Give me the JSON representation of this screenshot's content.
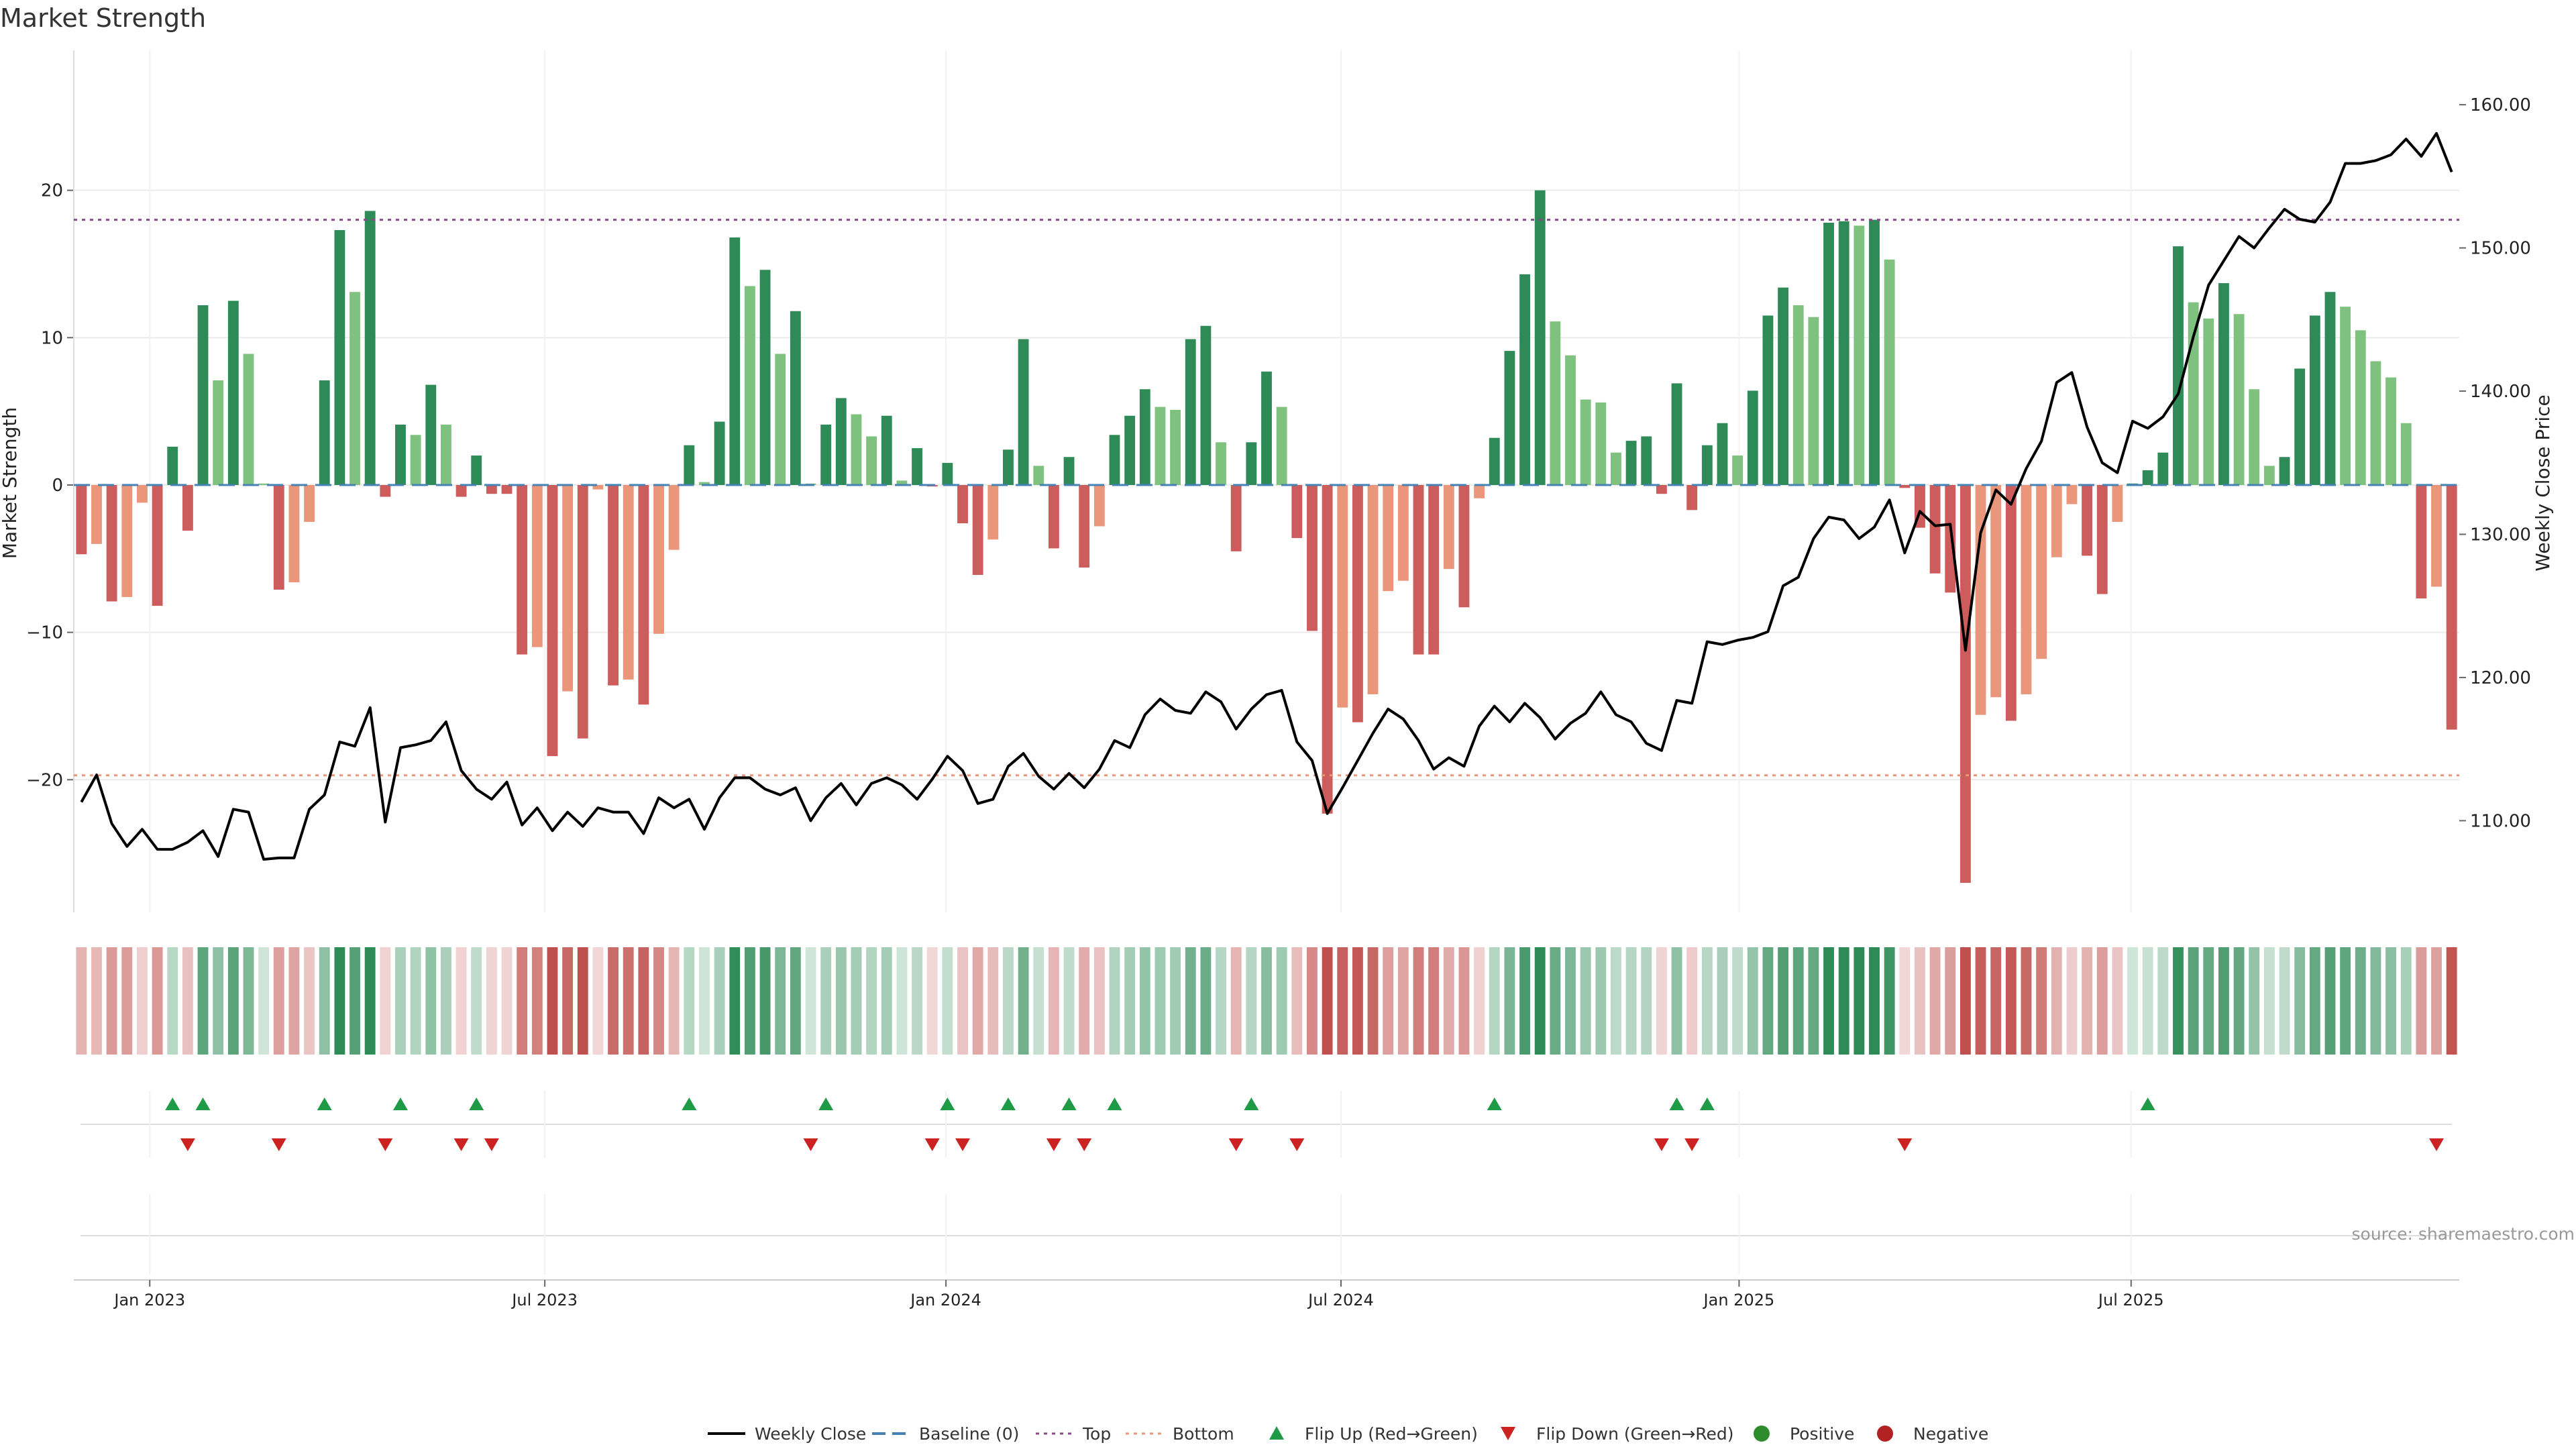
{
  "chart_data": {
    "type": "bar",
    "title": "Market Strength",
    "ylabel": "Market Strength",
    "y2label": "Weekly Close Price",
    "ylim": [
      -29,
      29.5
    ],
    "y2lim": [
      103.6,
      163.8
    ],
    "yticks": [
      -20,
      -10,
      0,
      10,
      20
    ],
    "y2ticks": [
      "110.00",
      "120.00",
      "130.00",
      "140.00",
      "150.00",
      "160.00"
    ],
    "top_line": 18,
    "bottom_line": -19.7,
    "x_start": "2022-11-28",
    "week_step": 1,
    "x_ticks": [
      {
        "label": "Jan 2023",
        "week": 5
      },
      {
        "label": "Jul 2023",
        "week": 31
      },
      {
        "label": "Jan 2024",
        "week": 57.4
      },
      {
        "label": "Jul 2024",
        "week": 83.4
      },
      {
        "label": "Jan 2025",
        "week": 109.6
      },
      {
        "label": "Jul 2025",
        "week": 135.4
      }
    ],
    "strength": [
      -4.7,
      -4,
      -7.9,
      -7.6,
      -1.2,
      -8.2,
      2.6,
      -3.1,
      12.2,
      7.1,
      12.5,
      8.9,
      0.1,
      -7.1,
      -6.6,
      -2.5,
      7.1,
      17.3,
      13.1,
      18.6,
      -0.8,
      4.1,
      3.4,
      6.8,
      4.1,
      -0.8,
      2,
      -0.6,
      -0.6,
      -11.5,
      -11,
      -18.4,
      -14,
      -17.2,
      -0.3,
      -13.6,
      -13.2,
      -14.9,
      -10.1,
      -4.4,
      2.7,
      0.2,
      4.3,
      16.8,
      13.5,
      14.6,
      8.9,
      11.8,
      0.1,
      4.1,
      5.9,
      4.8,
      3.3,
      4.7,
      0.3,
      2.5,
      -0.1,
      1.5,
      -2.6,
      -6.1,
      -3.7,
      2.4,
      9.9,
      1.3,
      -4.3,
      1.9,
      -5.6,
      -2.8,
      3.4,
      4.7,
      6.5,
      5.3,
      5.1,
      9.9,
      10.8,
      2.9,
      -4.5,
      2.9,
      7.7,
      5.3,
      -3.6,
      -9.9,
      -22.3,
      -15.1,
      -16.1,
      -14.2,
      -7.2,
      -6.5,
      -11.5,
      -11.5,
      -5.7,
      -8.3,
      -0.9,
      3.2,
      9.1,
      14.3,
      20,
      11.1,
      8.8,
      5.8,
      5.6,
      2.2,
      3,
      3.3,
      -0.6,
      6.9,
      -1.7,
      2.7,
      4.2,
      2,
      6.4,
      11.5,
      13.4,
      12.2,
      11.4,
      17.8,
      17.9,
      17.6,
      18,
      15.3,
      -0.2,
      -2.9,
      -6,
      -7.3,
      -27,
      -15.6,
      -14.4,
      -16,
      -14.2,
      -11.8,
      -4.9,
      -1.3,
      -4.8,
      -7.4,
      -2.5,
      0.1,
      1,
      2.2,
      16.2,
      12.4,
      11.3,
      13.7,
      11.6,
      6.5,
      1.3,
      1.9,
      7.9,
      11.5,
      13.1,
      12.1,
      10.5,
      8.4,
      7.3,
      4.2,
      -7.7,
      -6.9,
      -16.6
    ],
    "close": [
      111.3,
      113.2,
      109.8,
      108.2,
      109.4,
      108,
      108,
      108.5,
      109.3,
      107.5,
      110.8,
      110.6,
      107.3,
      107.4,
      107.4,
      110.8,
      111.8,
      115.5,
      115.2,
      117.9,
      109.9,
      115.1,
      115.3,
      115.6,
      116.9,
      113.5,
      112.2,
      111.5,
      112.7,
      109.7,
      110.9,
      109.3,
      110.6,
      109.6,
      110.9,
      110.6,
      110.6,
      109.1,
      111.6,
      110.9,
      111.5,
      109.4,
      111.6,
      113,
      113,
      112.2,
      111.8,
      112.3,
      110,
      111.6,
      112.6,
      111.1,
      112.6,
      113,
      112.5,
      111.5,
      112.9,
      114.5,
      113.5,
      111.2,
      111.5,
      113.8,
      114.7,
      113.1,
      112.2,
      113.3,
      112.3,
      113.6,
      115.6,
      115.1,
      117.4,
      118.5,
      117.7,
      117.5,
      119,
      118.3,
      116.4,
      117.8,
      118.8,
      119.1,
      115.5,
      114.2,
      110.5,
      112.3,
      114.2,
      116.1,
      117.8,
      117.1,
      115.6,
      113.6,
      114.4,
      113.8,
      116.6,
      118,
      116.9,
      118.2,
      117.2,
      115.7,
      116.8,
      117.5,
      119,
      117.4,
      116.9,
      115.4,
      114.9,
      118.4,
      118.2,
      122.5,
      122.3,
      122.6,
      122.8,
      123.2,
      126.4,
      127,
      129.7,
      131.2,
      131,
      129.7,
      130.5,
      132.4,
      128.7,
      131.6,
      130.6,
      130.7,
      121.9,
      130.1,
      133.1,
      132.1,
      134.6,
      136.5,
      140.6,
      141.3,
      137.5,
      135,
      134.3,
      137.9,
      137.4,
      138.2,
      139.8,
      143.8,
      147.4,
      149.1,
      150.8,
      150,
      151.4,
      152.7,
      152,
      151.8,
      153.2,
      155.9,
      155.9,
      156.1,
      156.5,
      157.6,
      156.4,
      158,
      155.3
    ],
    "mini_strength_note": "heat-strip uses same strength series",
    "flip_up": [
      6,
      8,
      16,
      21,
      26,
      40,
      49,
      57,
      61,
      65,
      68,
      77,
      93,
      105,
      107,
      136
    ],
    "flip_down": [
      7,
      13,
      20,
      25,
      27,
      48,
      56,
      58,
      64,
      66,
      76,
      80,
      104,
      106,
      120,
      155
    ]
  },
  "colors": {
    "strong_pos": "#2e8b57",
    "weak_pos": "#7fc17f",
    "strong_neg": "#cd5c5c",
    "weak_neg": "#e9967a",
    "close_line": "#000000",
    "baseline": "#4682b4",
    "top": "#8b4a8b",
    "bottom": "#e9967a",
    "flip_up": "#1f9a47",
    "flip_down": "#cc2222",
    "positive": "#2e8b2e",
    "negative": "#b22222",
    "grid": "#ebebeb",
    "source": "#999999"
  },
  "legend": [
    {
      "key": "close",
      "label": "Weekly Close"
    },
    {
      "key": "baseline",
      "label": "Baseline (0)"
    },
    {
      "key": "top",
      "label": "Top"
    },
    {
      "key": "bottom",
      "label": "Bottom"
    },
    {
      "key": "flip_up",
      "label": "Flip Up (Red→Green)"
    },
    {
      "key": "flip_down",
      "label": "Flip Down (Green→Red)"
    },
    {
      "key": "positive",
      "label": "Positive"
    },
    {
      "key": "negative",
      "label": "Negative"
    }
  ],
  "source": "source: sharemaestro.com"
}
